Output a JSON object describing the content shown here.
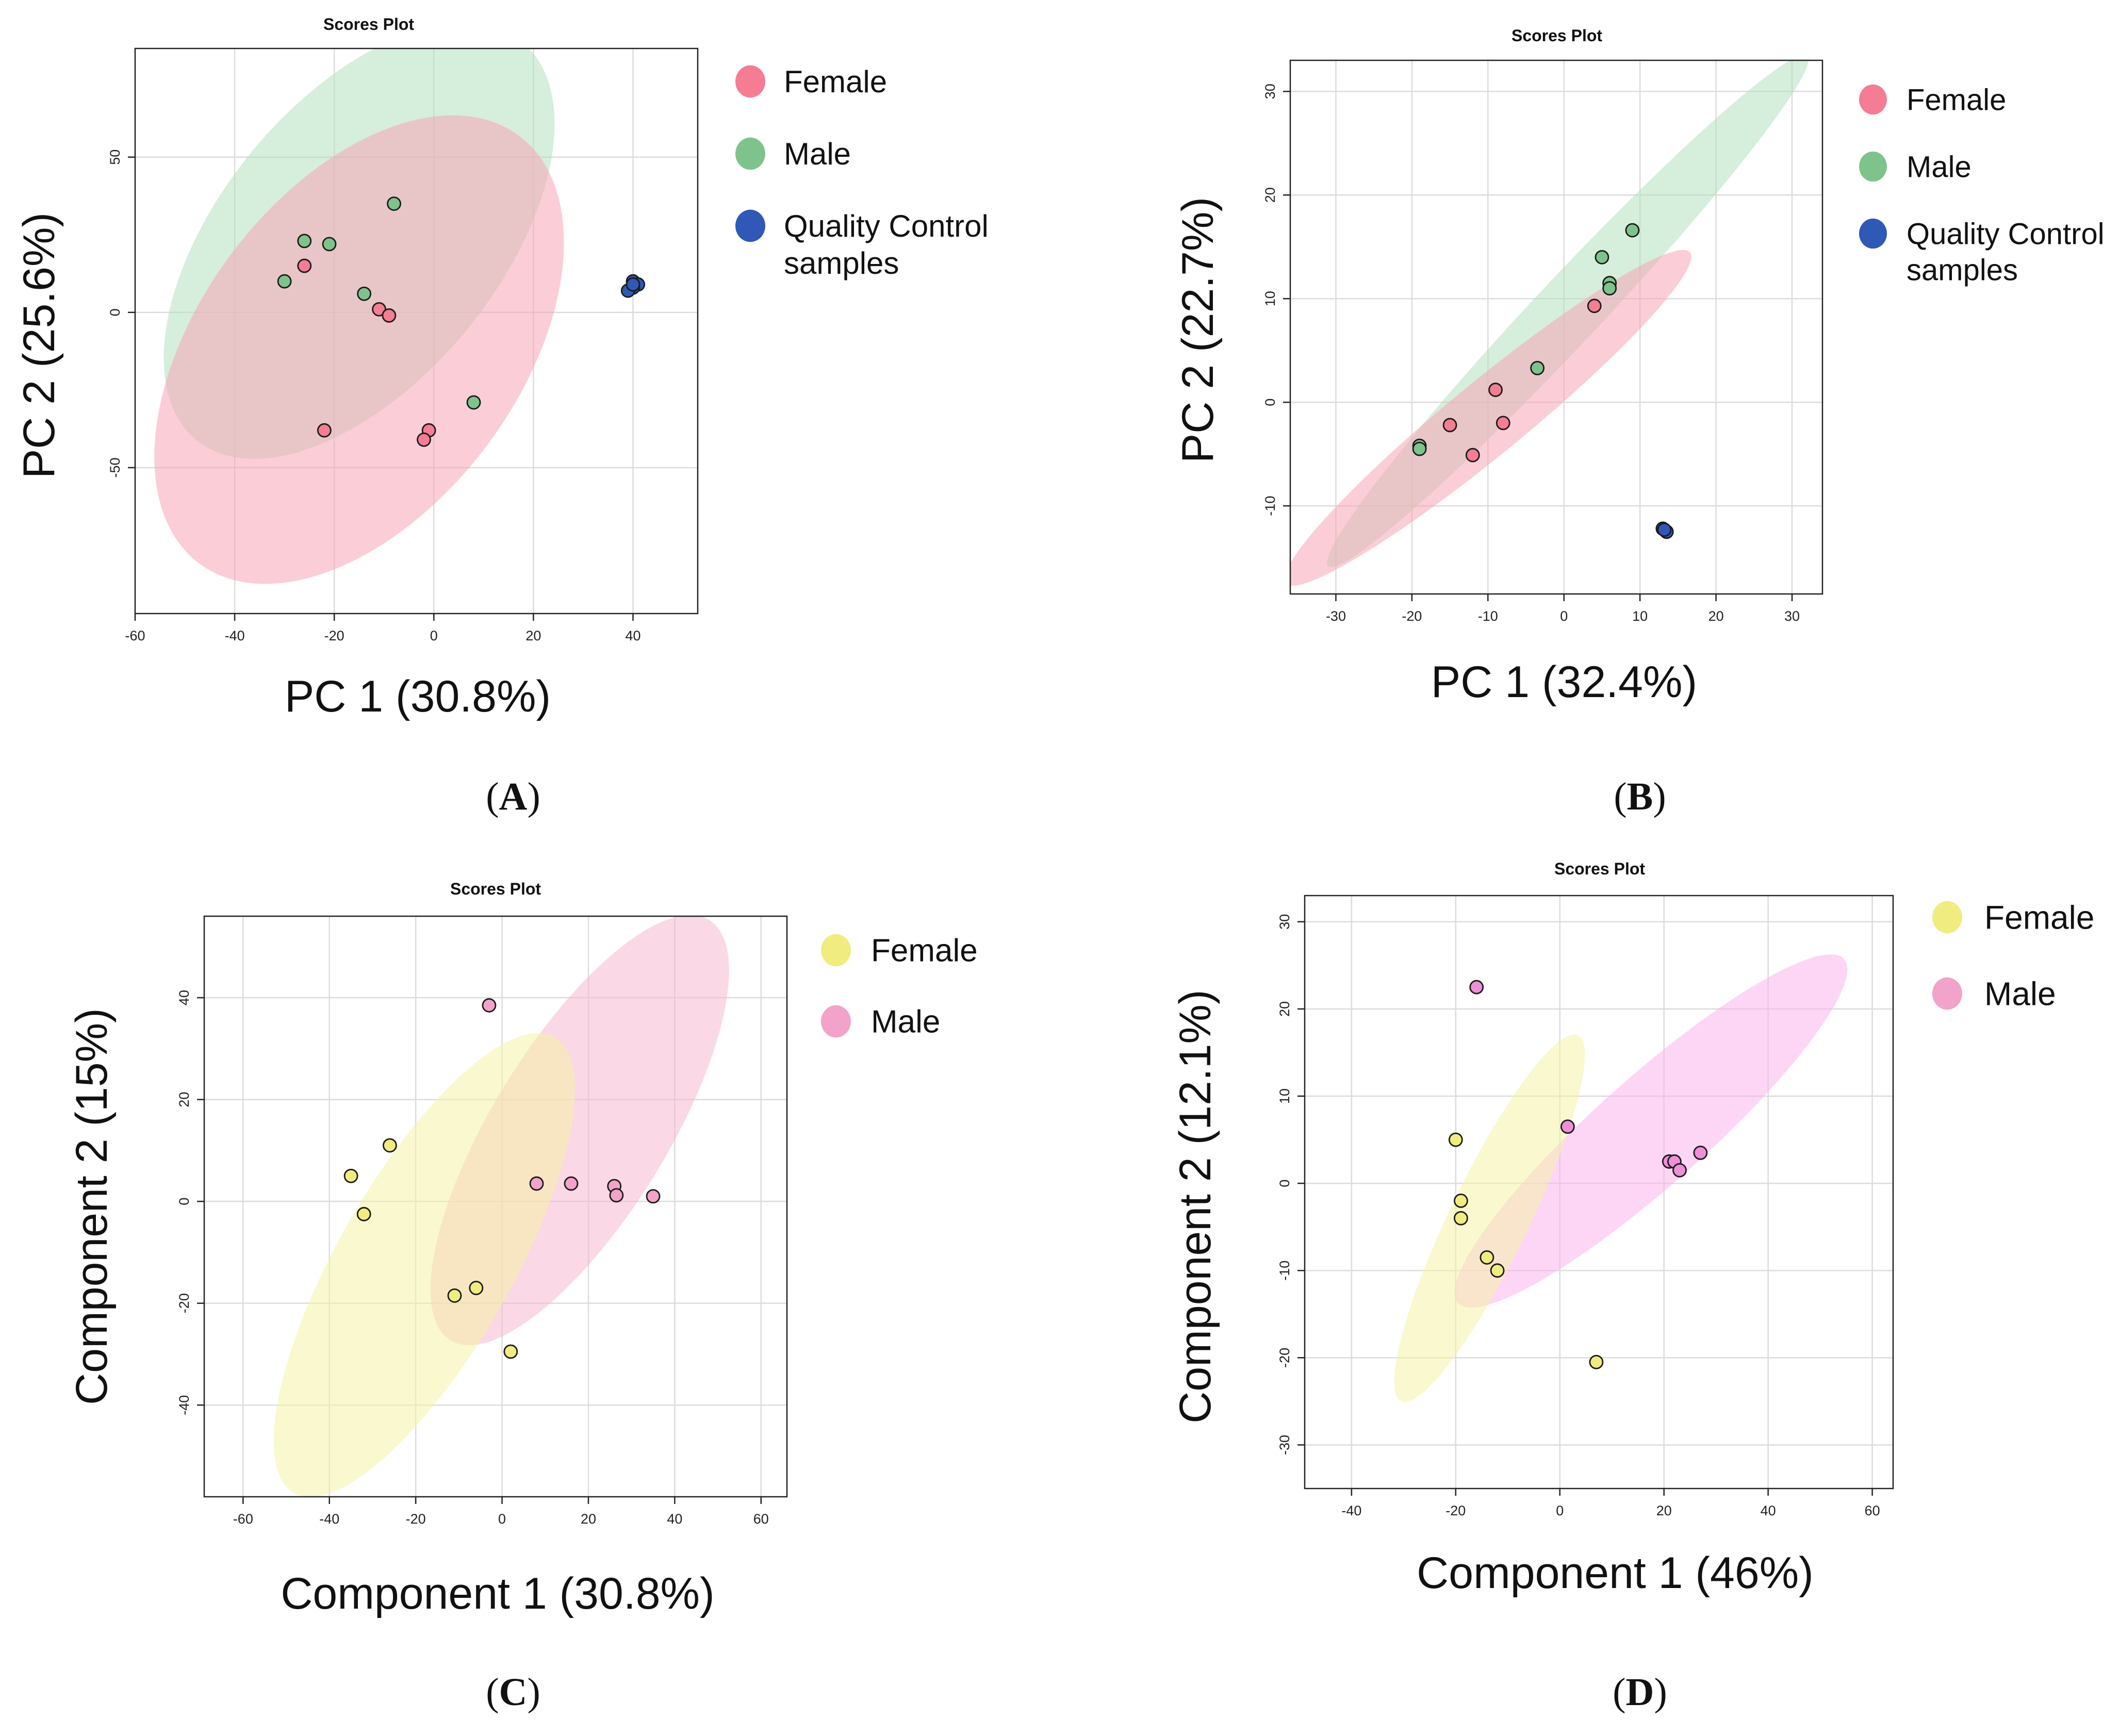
{
  "colors": {
    "female_red": "#f47c93",
    "female_ellipse_red": "#f7a6b6",
    "male_green": "#7fc38c",
    "male_ellipse_green": "#b4e0c0",
    "qc_blue": "#2f58b7",
    "female_yellow": "#f0ec7f",
    "female_ellipse_yellow": "#f6f2a8",
    "male_pink": "#f3a3c9",
    "male_ellipse_pink": "#f7b8cf",
    "male_magenta": "#ef8fd8",
    "male_ellipse_magenta": "#fbb5ee"
  },
  "chart_data": [
    {
      "id": "A",
      "type": "scatter",
      "title": "Scores Plot",
      "panel_label": "A",
      "xlabel": "PC 1 (30.8%)",
      "ylabel": "PC 2 (25.6%)",
      "xlim": [
        -60,
        53
      ],
      "ylim": [
        -97,
        85
      ],
      "xticks": [
        -60,
        -40,
        -20,
        0,
        20,
        40
      ],
      "yticks": [
        -50,
        0,
        50
      ],
      "legend_position": "right",
      "legend": [
        {
          "label": "Female",
          "color": "#f47c93"
        },
        {
          "label": "Male",
          "color": "#7fc38c"
        },
        {
          "label": "Quality Control",
          "label2": "samples",
          "color": "#2f58b7"
        }
      ],
      "series": [
        {
          "name": "Female",
          "color": "#f47c93",
          "points": [
            [
              -26,
              15
            ],
            [
              -11,
              1
            ],
            [
              -9,
              -1
            ],
            [
              -22,
              -38
            ],
            [
              -1,
              -38
            ],
            [
              -2,
              -41
            ]
          ]
        },
        {
          "name": "Male",
          "color": "#7fc38c",
          "points": [
            [
              -8,
              35
            ],
            [
              -26,
              23
            ],
            [
              -21,
              22
            ],
            [
              -30,
              10
            ],
            [
              -14,
              6
            ],
            [
              8,
              -29
            ]
          ]
        },
        {
          "name": "Quality Control samples",
          "color": "#2f58b7",
          "points": [
            [
              40,
              10
            ],
            [
              41,
              9
            ],
            [
              40,
              8
            ],
            [
              39,
              7
            ],
            [
              40,
              9
            ]
          ]
        }
      ],
      "ellipses": [
        {
          "group": "Male",
          "cx": -15,
          "cy": 23,
          "rx": 72,
          "ry": 30,
          "angle_deg": -63,
          "color": "#b4e0c0"
        },
        {
          "group": "Female",
          "cx": -15,
          "cy": -12,
          "rx": 76,
          "ry": 34,
          "angle_deg": -65,
          "color": "#f7a6b6"
        }
      ]
    },
    {
      "id": "B",
      "type": "scatter",
      "title": "Scores Plot",
      "panel_label": "B",
      "xlabel": "PC 1 (32.4%)",
      "ylabel": "PC 2 (22.7%)",
      "xlim": [
        -36,
        34
      ],
      "ylim": [
        -18.5,
        33
      ],
      "xticks": [
        -30,
        -20,
        -10,
        0,
        10,
        20,
        30
      ],
      "yticks": [
        -10,
        0,
        10,
        20,
        30
      ],
      "legend_position": "right",
      "legend": [
        {
          "label": "Female",
          "color": "#f47c93"
        },
        {
          "label": "Male",
          "color": "#7fc38c"
        },
        {
          "label": "Quality Control",
          "label2": "samples",
          "color": "#2f58b7"
        }
      ],
      "series": [
        {
          "name": "Female",
          "color": "#f47c93",
          "points": [
            [
              4,
              9.3
            ],
            [
              -9,
              1.2
            ],
            [
              -15,
              -2.2
            ],
            [
              -8,
              -2
            ],
            [
              -12,
              -5.1
            ]
          ]
        },
        {
          "name": "Male",
          "color": "#7fc38c",
          "points": [
            [
              9,
              16.6
            ],
            [
              5,
              14
            ],
            [
              6,
              11.5
            ],
            [
              6,
              11
            ],
            [
              -3.5,
              3.3
            ],
            [
              -19,
              -4.2
            ],
            [
              -19,
              -4.5
            ]
          ]
        },
        {
          "name": "Quality Control samples",
          "color": "#2f58b7",
          "points": [
            [
              13,
              -12.2
            ],
            [
              13.5,
              -12.5
            ],
            [
              13.2,
              -12.3
            ]
          ]
        }
      ],
      "ellipses": [
        {
          "group": "Male",
          "cx": 0.5,
          "cy": 8.8,
          "rx": 40,
          "ry": 3.5,
          "angle_deg": -38,
          "color": "#b4e0c0"
        },
        {
          "group": "Female",
          "cx": -10,
          "cy": -1.5,
          "rx": 31,
          "ry": 3.8,
          "angle_deg": -31,
          "color": "#f7a6b6"
        }
      ]
    },
    {
      "id": "C",
      "type": "scatter",
      "title": "Scores Plot",
      "panel_label": "C",
      "xlabel": "Component 1 (30.8%)",
      "ylabel": "Component 2 (15%)",
      "xlim": [
        -69,
        66
      ],
      "ylim": [
        -58,
        56
      ],
      "xticks": [
        -60,
        -40,
        -20,
        0,
        20,
        40,
        60
      ],
      "yticks": [
        -40,
        -20,
        0,
        20,
        40
      ],
      "legend_position": "right",
      "legend": [
        {
          "label": "Female",
          "color": "#f0ec7f"
        },
        {
          "label": "Male",
          "color": "#f3a3c9"
        }
      ],
      "series": [
        {
          "name": "Female",
          "color": "#f0ec7f",
          "points": [
            [
              -26,
              11
            ],
            [
              -35,
              5
            ],
            [
              -32,
              -2.5
            ],
            [
              -6,
              -17
            ],
            [
              -11,
              -18.5
            ],
            [
              2,
              -29.5
            ]
          ]
        },
        {
          "name": "Male",
          "color": "#f3a3c9",
          "points": [
            [
              -3,
              38.5
            ],
            [
              8,
              3.5
            ],
            [
              16,
              3.5
            ],
            [
              26,
              3
            ],
            [
              26.5,
              1.2
            ],
            [
              35,
              1
            ]
          ]
        }
      ],
      "ellipses": [
        {
          "group": "Male",
          "cx": 18,
          "cy": 14,
          "rx": 51,
          "ry": 19,
          "angle_deg": -54,
          "color": "#f7b8cf"
        },
        {
          "group": "Female",
          "cx": -18,
          "cy": -12.5,
          "rx": 54,
          "ry": 19,
          "angle_deg": -56,
          "color": "#f6f2a8"
        }
      ]
    },
    {
      "id": "D",
      "type": "scatter",
      "title": "Scores Plot",
      "panel_label": "D",
      "xlabel": "Component 1 (46%)",
      "ylabel": "Component 2 (12.1%)",
      "xlim": [
        -49,
        64
      ],
      "ylim": [
        -35,
        33
      ],
      "xticks": [
        -40,
        -20,
        0,
        20,
        40,
        60
      ],
      "yticks": [
        -30,
        -20,
        -10,
        0,
        10,
        20,
        30
      ],
      "legend_position": "right",
      "legend": [
        {
          "label": "Female",
          "color": "#f0ec7f"
        },
        {
          "label": "Male",
          "color": "#f3a3c9"
        }
      ],
      "series": [
        {
          "name": "Female",
          "color": "#f0ec7f",
          "points": [
            [
              -20,
              5
            ],
            [
              -19,
              -2
            ],
            [
              -19,
              -4
            ],
            [
              -14,
              -8.5
            ],
            [
              -12,
              -10
            ],
            [
              7,
              -20.5
            ]
          ]
        },
        {
          "name": "Male",
          "color": "#ef8fd8",
          "points": [
            [
              -16,
              22.5
            ],
            [
              1.5,
              6.5
            ],
            [
              21,
              2.5
            ],
            [
              22,
              2.5
            ],
            [
              23,
              1.5
            ],
            [
              27,
              3.5
            ]
          ]
        }
      ],
      "ellipses": [
        {
          "group": "Male",
          "cx": 17.5,
          "cy": 6,
          "rx": 42,
          "ry": 6.7,
          "angle_deg": -28,
          "color": "#fbb5ee"
        },
        {
          "group": "Female",
          "cx": -13.5,
          "cy": -4,
          "rx": 27,
          "ry": 5.8,
          "angle_deg": -51,
          "color": "#f6f2a8"
        }
      ]
    }
  ]
}
